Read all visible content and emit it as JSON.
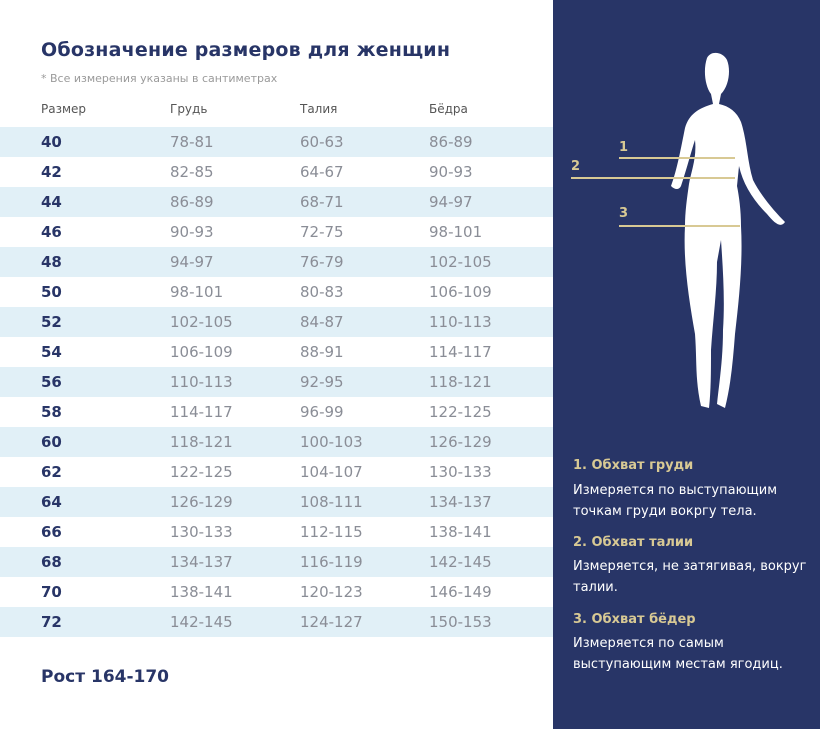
{
  "title": "Обозначение размеров для женщин",
  "note": "* Все измерения указаны в сантиметрах",
  "columns": [
    "Размер",
    "Грудь",
    "Талия",
    "Бёдра"
  ],
  "rows": [
    [
      "40",
      "78-81",
      "60-63",
      "86-89"
    ],
    [
      "42",
      "82-85",
      "64-67",
      "90-93"
    ],
    [
      "44",
      "86-89",
      "68-71",
      "94-97"
    ],
    [
      "46",
      "90-93",
      "72-75",
      "98-101"
    ],
    [
      "48",
      "94-97",
      "76-79",
      "102-105"
    ],
    [
      "50",
      "98-101",
      "80-83",
      "106-109"
    ],
    [
      "52",
      "102-105",
      "84-87",
      "110-113"
    ],
    [
      "54",
      "106-109",
      "88-91",
      "114-117"
    ],
    [
      "56",
      "110-113",
      "92-95",
      "118-121"
    ],
    [
      "58",
      "114-117",
      "96-99",
      "122-125"
    ],
    [
      "60",
      "118-121",
      "100-103",
      "126-129"
    ],
    [
      "62",
      "122-125",
      "104-107",
      "130-133"
    ],
    [
      "64",
      "126-129",
      "108-111",
      "134-137"
    ],
    [
      "66",
      "130-133",
      "112-115",
      "138-141"
    ],
    [
      "68",
      "134-137",
      "116-119",
      "142-145"
    ],
    [
      "70",
      "138-141",
      "120-123",
      "146-149"
    ],
    [
      "72",
      "142-145",
      "124-127",
      "150-153"
    ]
  ],
  "height_label": "Рост 164-170",
  "figure": {
    "marks": [
      "1",
      "2",
      "3"
    ]
  },
  "legend": [
    {
      "heading": "1. Обхват груди",
      "text": "Измеряется по  выступающим точкам груди вокргу тела."
    },
    {
      "heading": "2. Обхват талии",
      "text": "Измеряется, не затягивая, вокруг талии."
    },
    {
      "heading": "3. Обхват бёдер",
      "text": "Измеряется по самым выступающим местам ягодиц."
    }
  ],
  "colors": {
    "navy": "#283567",
    "stripe": "#e1f0f7",
    "gold": "#d8c994"
  }
}
